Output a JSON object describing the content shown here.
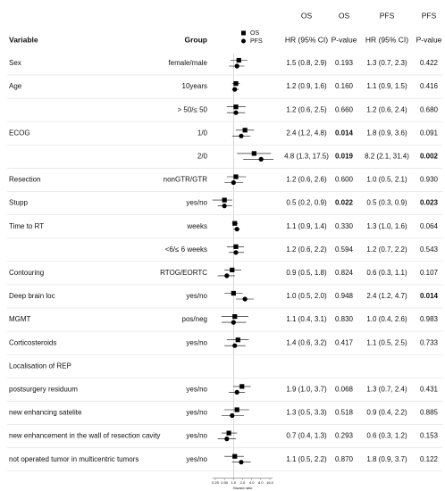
{
  "chart_data": {
    "type": "forest",
    "header": {
      "group_labels": [
        "OS",
        "OS",
        "PFS",
        "PFS"
      ],
      "columns": [
        "Variable",
        "Group",
        "HR (95% CI)",
        "P-value",
        "HR (95% CI)",
        "P-value"
      ]
    },
    "series": [
      {
        "name": "OS",
        "color": "#000000",
        "marker": "square"
      },
      {
        "name": "PFS",
        "color": "#000000",
        "marker": "circle"
      }
    ],
    "xscale": "log",
    "xlabel": "Hazard ratio",
    "xlim": [
      0.25,
      16
    ],
    "xticks": [
      0.25,
      {
        "value": 0.5,
        "label": "0.50"
      },
      {
        "value": 1,
        "label": "1.0"
      },
      {
        "value": 2,
        "label": "2.0"
      },
      {
        "value": 4,
        "label": "4.0"
      },
      {
        "value": 8,
        "label": "8.0"
      },
      {
        "value": 16,
        "label": "16.0"
      }
    ],
    "reference_line": 1,
    "rows": [
      {
        "variable": "Sex",
        "group": "female/male",
        "os": {
          "label": "1.5 (0.8, 2.9)",
          "hr": 1.5,
          "lo": 0.8,
          "hi": 2.9,
          "p": "0.193"
        },
        "pfs": {
          "label": "1.3 (0.7, 2.3)",
          "hr": 1.3,
          "lo": 0.7,
          "hi": 2.3,
          "p": "0.422"
        }
      },
      {
        "variable": "Age",
        "group": "10years",
        "os": {
          "label": "1.2 (0.9, 1.6)",
          "hr": 1.2,
          "lo": 0.9,
          "hi": 1.6,
          "p": "0.160"
        },
        "pfs": {
          "label": "1.1 (0.9, 1.5)",
          "hr": 1.1,
          "lo": 0.9,
          "hi": 1.5,
          "p": "0.416"
        }
      },
      {
        "group": "> 50/≤ 50",
        "os": {
          "label": "1.2 (0.6, 2.5)",
          "hr": 1.2,
          "lo": 0.6,
          "hi": 2.5,
          "p": "0.660"
        },
        "pfs": {
          "label": "1.2 (0.6, 2.4)",
          "hr": 1.2,
          "lo": 0.6,
          "hi": 2.4,
          "p": "0.680"
        }
      },
      {
        "variable": "ECOG",
        "group": "1/0",
        "os": {
          "label": "2.4 (1.2, 4.8)",
          "hr": 2.4,
          "lo": 1.2,
          "hi": 4.8,
          "p": "0.014",
          "bold": true
        },
        "pfs": {
          "label": "1.8 (0.9, 3.6)",
          "hr": 1.8,
          "lo": 0.9,
          "hi": 3.6,
          "p": "0.091"
        }
      },
      {
        "group": "2/0",
        "os": {
          "label": "4.8 (1.3, 17.5)",
          "hr": 4.8,
          "lo": 1.3,
          "hi": 17.5,
          "p": "0.019",
          "bold": true
        },
        "pfs": {
          "label": "8.2 (2.1, 31.4)",
          "hr": 8.2,
          "lo": 2.1,
          "hi": 31.4,
          "p": "0.002",
          "bold": true
        }
      },
      {
        "variable": "Resection",
        "group": "nonGTR/GTR",
        "os": {
          "label": "1.2 (0.6, 2.6)",
          "hr": 1.2,
          "lo": 0.6,
          "hi": 2.6,
          "p": "0.600"
        },
        "pfs": {
          "label": "1.0 (0.5, 2.1)",
          "hr": 1,
          "lo": 0.5,
          "hi": 2.1,
          "p": "0.930"
        }
      },
      {
        "variable": "Stupp",
        "group": "yes/no",
        "os": {
          "label": "0.5 (0.2, 0.9)",
          "hr": 0.5,
          "lo": 0.2,
          "hi": 0.9,
          "p": "0.022",
          "bold": true
        },
        "pfs": {
          "label": "0.5 (0.3, 0.9)",
          "hr": 0.5,
          "lo": 0.3,
          "hi": 0.9,
          "p": "0.023",
          "bold": true
        }
      },
      {
        "variable": "Time to RT",
        "group": "weeks",
        "os": {
          "label": "1.1 (0.9, 1.4)",
          "hr": 1.1,
          "lo": 0.9,
          "hi": 1.4,
          "p": "0.330"
        },
        "pfs": {
          "label": "1.3 (1.0, 1.6)",
          "hr": 1.3,
          "lo": 1,
          "hi": 1.6,
          "p": "0.064"
        }
      },
      {
        "group": "<6/≤ 6 weeks",
        "os": {
          "label": "1.2 (0.6, 2.2)",
          "hr": 1.2,
          "lo": 0.6,
          "hi": 2.2,
          "p": "0.594"
        },
        "pfs": {
          "label": "1.2 (0.7, 2.2)",
          "hr": 1.2,
          "lo": 0.7,
          "hi": 2.2,
          "p": "0.543"
        }
      },
      {
        "variable": "Contouring",
        "group": "RTOG/EORTC",
        "os": {
          "label": "0.9 (0.5, 1.8)",
          "hr": 0.9,
          "lo": 0.5,
          "hi": 1.8,
          "p": "0.824"
        },
        "pfs": {
          "label": "0.6 (0.3, 1.1)",
          "hr": 0.6,
          "lo": 0.3,
          "hi": 1.1,
          "p": "0.107"
        }
      },
      {
        "variable": "Deep brain loc",
        "group": "yes/no",
        "os": {
          "label": "1.0 (0.5, 2.0)",
          "hr": 1,
          "lo": 0.5,
          "hi": 2,
          "p": "0.948"
        },
        "pfs": {
          "label": "2.4 (1.2, 4.7)",
          "hr": 2.4,
          "lo": 1.2,
          "hi": 4.7,
          "p": "0.014",
          "bold": true
        }
      },
      {
        "variable": "MGMT",
        "group": "pos/neg",
        "os": {
          "label": "1.1 (0.4, 3.1)",
          "hr": 1.1,
          "lo": 0.4,
          "hi": 3.1,
          "p": "0.830"
        },
        "pfs": {
          "label": "1.0 (0.4, 2.6)",
          "hr": 1,
          "lo": 0.4,
          "hi": 2.6,
          "p": "0.983"
        }
      },
      {
        "variable": "Corticosteroids",
        "group": "yes/no",
        "os": {
          "label": "1.4 (0.6, 3.2)",
          "hr": 1.4,
          "lo": 0.6,
          "hi": 3.2,
          "p": "0.417"
        },
        "pfs": {
          "label": "1.1 (0.5, 2.5)",
          "hr": 1.1,
          "lo": 0.5,
          "hi": 2.5,
          "p": "0.733"
        }
      },
      {
        "variable": "Localisation of REP"
      },
      {
        "variable": "postsurgery residuum",
        "group": "yes/no",
        "os": {
          "label": "1.9 (1.0, 3.7)",
          "hr": 1.9,
          "lo": 1,
          "hi": 3.7,
          "p": "0.068"
        },
        "pfs": {
          "label": "1.3 (0.7, 2.4)",
          "hr": 1.3,
          "lo": 0.7,
          "hi": 2.4,
          "p": "0.431"
        }
      },
      {
        "variable": "new enhancing satelite",
        "group": "yes/no",
        "os": {
          "label": "1.3 (0.5, 3.3)",
          "hr": 1.3,
          "lo": 0.5,
          "hi": 3.3,
          "p": "0.518"
        },
        "pfs": {
          "label": "0.9 (0.4, 2.2)",
          "hr": 0.9,
          "lo": 0.4,
          "hi": 2.2,
          "p": "0.885"
        }
      },
      {
        "variable": "new enhancement in the wall of resection cavity",
        "group": "yes/no",
        "os": {
          "label": "0.7 (0.4, 1.3)",
          "hr": 0.7,
          "lo": 0.4,
          "hi": 1.3,
          "p": "0.293"
        },
        "pfs": {
          "label": "0.6 (0.3, 1.2)",
          "hr": 0.6,
          "lo": 0.3,
          "hi": 1.2,
          "p": "0.153"
        }
      },
      {
        "variable": "not operated tumor in multicentric tumors",
        "group": "yes/no",
        "os": {
          "label": "1.1 (0.5, 2.2)",
          "hr": 1.1,
          "lo": 0.5,
          "hi": 2.2,
          "p": "0.870"
        },
        "pfs": {
          "label": "1.8 (0.9, 3.7)",
          "hr": 1.8,
          "lo": 0.9,
          "hi": 3.7,
          "p": "0.122"
        }
      }
    ]
  }
}
